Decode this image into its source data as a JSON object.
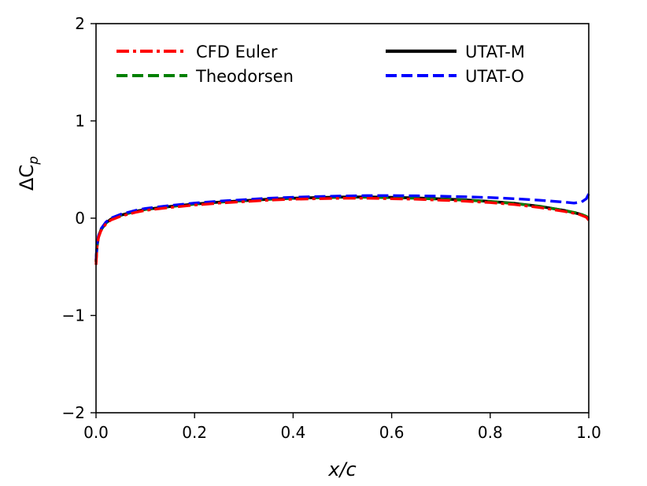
{
  "chart_data": {
    "type": "line",
    "title": "",
    "xlabel": "x/c",
    "ylabel": "ΔC_p",
    "xlim": [
      0.0,
      1.0
    ],
    "ylim": [
      -2,
      2
    ],
    "xticks": [
      "0.0",
      "0.2",
      "0.4",
      "0.6",
      "0.8",
      "1.0"
    ],
    "yticks": [
      "−2",
      "−1",
      "0",
      "1",
      "2"
    ],
    "legend_position": "top",
    "series": [
      {
        "name": "CFD Euler",
        "color": "#ff0000",
        "style": "dashdot",
        "x": [
          0.0,
          0.002,
          0.005,
          0.01,
          0.02,
          0.03,
          0.05,
          0.08,
          0.1,
          0.15,
          0.2,
          0.25,
          0.3,
          0.35,
          0.4,
          0.45,
          0.5,
          0.55,
          0.6,
          0.65,
          0.7,
          0.75,
          0.8,
          0.85,
          0.9,
          0.95,
          0.98,
          0.995,
          1.0
        ],
        "y": [
          -0.48,
          -0.3,
          -0.2,
          -0.13,
          -0.06,
          -0.02,
          0.02,
          0.06,
          0.08,
          0.11,
          0.135,
          0.155,
          0.17,
          0.185,
          0.195,
          0.2,
          0.205,
          0.205,
          0.2,
          0.195,
          0.185,
          0.175,
          0.16,
          0.14,
          0.11,
          0.07,
          0.04,
          0.01,
          -0.02
        ]
      },
      {
        "name": "Theodorsen",
        "color": "#008000",
        "style": "dashed",
        "x": [
          0.0,
          0.002,
          0.005,
          0.01,
          0.02,
          0.03,
          0.05,
          0.08,
          0.1,
          0.15,
          0.2,
          0.25,
          0.3,
          0.35,
          0.4,
          0.45,
          0.5,
          0.55,
          0.6,
          0.65,
          0.7,
          0.75,
          0.8,
          0.85,
          0.9,
          0.95,
          0.98,
          0.995,
          1.0
        ],
        "y": [
          -0.44,
          -0.28,
          -0.19,
          -0.12,
          -0.05,
          -0.01,
          0.03,
          0.07,
          0.09,
          0.12,
          0.145,
          0.165,
          0.18,
          0.195,
          0.205,
          0.21,
          0.215,
          0.215,
          0.21,
          0.205,
          0.195,
          0.185,
          0.17,
          0.15,
          0.12,
          0.08,
          0.05,
          0.02,
          0.0
        ]
      },
      {
        "name": "UTAT-M",
        "color": "#000000",
        "style": "solid",
        "x": [
          0.0,
          0.002,
          0.005,
          0.01,
          0.02,
          0.03,
          0.05,
          0.08,
          0.1,
          0.15,
          0.2,
          0.25,
          0.3,
          0.35,
          0.4,
          0.45,
          0.5,
          0.55,
          0.6,
          0.65,
          0.7,
          0.75,
          0.8,
          0.85,
          0.9,
          0.95,
          0.98,
          0.995,
          1.0
        ],
        "y": [
          -0.45,
          -0.29,
          -0.19,
          -0.12,
          -0.05,
          -0.01,
          0.03,
          0.07,
          0.09,
          0.12,
          0.145,
          0.165,
          0.18,
          0.195,
          0.205,
          0.212,
          0.217,
          0.218,
          0.214,
          0.208,
          0.198,
          0.188,
          0.172,
          0.152,
          0.122,
          0.08,
          0.045,
          0.015,
          -0.01
        ]
      },
      {
        "name": "UTAT-O",
        "color": "#0000ff",
        "style": "dashed",
        "x": [
          0.0,
          0.002,
          0.005,
          0.01,
          0.02,
          0.03,
          0.05,
          0.08,
          0.1,
          0.15,
          0.2,
          0.25,
          0.3,
          0.35,
          0.4,
          0.45,
          0.5,
          0.55,
          0.6,
          0.65,
          0.7,
          0.75,
          0.8,
          0.85,
          0.9,
          0.95,
          0.97,
          0.985,
          0.995,
          1.0
        ],
        "y": [
          -0.43,
          -0.27,
          -0.18,
          -0.11,
          -0.04,
          0.0,
          0.04,
          0.08,
          0.1,
          0.13,
          0.155,
          0.175,
          0.19,
          0.205,
          0.215,
          0.222,
          0.228,
          0.232,
          0.232,
          0.23,
          0.226,
          0.22,
          0.212,
          0.2,
          0.185,
          0.165,
          0.155,
          0.165,
          0.2,
          0.25
        ]
      }
    ]
  }
}
